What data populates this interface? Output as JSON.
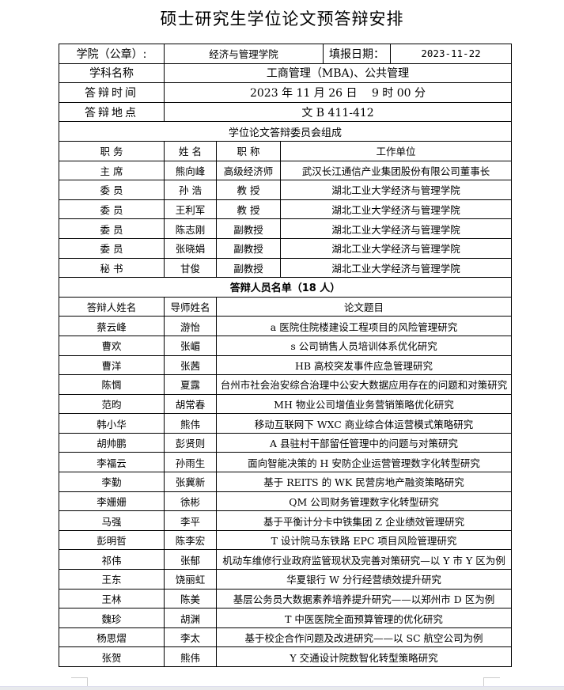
{
  "title": "硕士研究生学位论文预答辩安排",
  "header": {
    "college_label": "学院（公章）:",
    "college": "经济与管理学院",
    "date_label": "填报日期：",
    "date": "2023-11-22",
    "discipline_label": "学科名称",
    "discipline": "工商管理（MBA)、公共管理",
    "time_label": "答辩时间",
    "time": "2023 年 11 月 26 日　 9 时 00 分",
    "place_label": "答辩地点",
    "place": "文 B 411-412"
  },
  "committee": {
    "heading": "学位论文答辩委员会组成",
    "columns": [
      "职 务",
      "姓 名",
      "职 称",
      "工作单位"
    ],
    "rows": [
      [
        "主 席",
        "熊向峰",
        "高级经济师",
        "武汉长江通信产业集团股份有限公司董事长"
      ],
      [
        "委 员",
        "孙 浩",
        "教 授",
        "湖北工业大学经济与管理学院"
      ],
      [
        "委 员",
        "王利军",
        "教 授",
        "湖北工业大学经济与管理学院"
      ],
      [
        "委 员",
        "陈志刚",
        "副教授",
        "湖北工业大学经济与管理学院"
      ],
      [
        "委 员",
        "张晓娟",
        "副教授",
        "湖北工业大学经济与管理学院"
      ],
      [
        "秘 书",
        "甘俊",
        "副教授",
        "湖北工业大学经济与管理学院"
      ]
    ]
  },
  "candidates": {
    "heading": "答辩人员名单（18 人）",
    "columns": [
      "答辩人姓名",
      "导师姓名",
      "论文题目"
    ],
    "rows": [
      [
        "蔡云峰",
        "游怡",
        "a 医院住院楼建设工程项目的风险管理研究"
      ],
      [
        "曹欢",
        "张嵋",
        "s 公司销售人员培训体系优化研究"
      ],
      [
        "曹洋",
        "张茜",
        "HB 高校突发事件应急管理研究"
      ],
      [
        "陈惆",
        "夏露",
        "台州市社会治安综合治理中公安大数据应用存在的问题和对策研究"
      ],
      [
        "范昀",
        "胡常春",
        "MH 物业公司增值业务营销策略优化研究"
      ],
      [
        "韩小华",
        "熊伟",
        "移动互联网下 WXC 商业综合体运营模式策略研究"
      ],
      [
        "胡帅鹏",
        "彭贤则",
        "A 县驻村干部留任管理中的问题与对策研究"
      ],
      [
        "李福云",
        "孙雨生",
        "面向智能决策的 H 安防企业运营管理数字化转型研究"
      ],
      [
        "李勤",
        "张冀新",
        "基于 REITS 的 WK 民营房地产融资策略研究"
      ],
      [
        "李姗姗",
        "徐彬",
        "QM 公司财务管理数字化转型研究"
      ],
      [
        "马强",
        "李平",
        "基于平衡计分卡中铁集团 Z 企业绩效管理研究"
      ],
      [
        "彭明哲",
        "陈李宏",
        "T 设计院马东铁路 EPC 项目风险管理研究"
      ],
      [
        "祁伟",
        "张郁",
        "机动车维修行业政府监管现状及完善对策研究—以 Y 市 Y 区为例"
      ],
      [
        "王东",
        "饶丽虹",
        "华夏银行 W 分行经营绩效提升研究"
      ],
      [
        "王林",
        "陈美",
        "基层公务员大数据素养培养提升研究——以郑州市 D 区为例"
      ],
      [
        "魏珍",
        "胡渊",
        "T 中医医院全面预算管理的优化研究"
      ],
      [
        "杨思熠",
        "李太",
        "基于校企合作问题及改进研究——以 SC 航空公司为例"
      ],
      [
        "张贺",
        "熊伟",
        "Y 交通设计院数智化转型策略研究"
      ]
    ]
  }
}
